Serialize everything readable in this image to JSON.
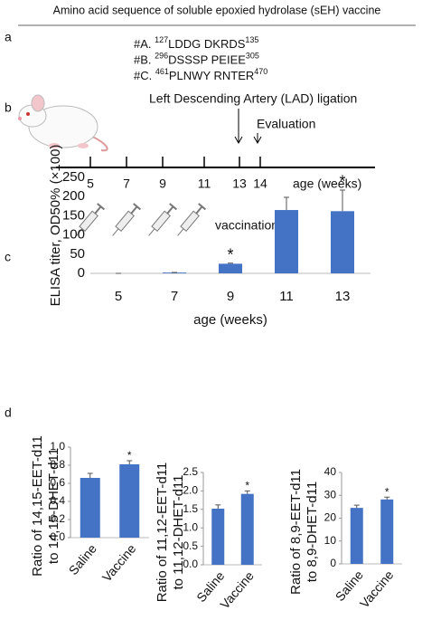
{
  "panel_labels": [
    "a",
    "b",
    "c",
    "d"
  ],
  "panel_a": {
    "title": "Amino acid sequence of soluble epoxied hydrolase (sEH) vaccine",
    "sequences": [
      {
        "id": "#A.",
        "start": 127,
        "residues": "LDDG DKRDS",
        "end": 135
      },
      {
        "id": "#B.",
        "start": 296,
        "residues": "DSSSP PEIEE",
        "end": 305
      },
      {
        "id": "#C.",
        "start": 461,
        "residues": "PLNWY RNTER",
        "end": 470
      }
    ]
  },
  "panel_b": {
    "ligation": "Left Descending Artery (LAD) ligation",
    "evaluation": "Evaluation",
    "ticks": [
      5,
      7,
      9,
      11,
      13,
      14
    ],
    "axis_label": "age (weeks)",
    "vaccination": "vaccination"
  },
  "chart_data": [
    {
      "type": "bar",
      "categories": [
        "5",
        "7",
        "9",
        "11",
        "13"
      ],
      "values": [
        0,
        2,
        25,
        165,
        162
      ],
      "errors": [
        0,
        0.5,
        1.5,
        33,
        55
      ],
      "labels": [
        null,
        null,
        "*",
        null,
        "*"
      ],
      "color": "#4472c4",
      "ylim": [
        0,
        250
      ],
      "yticks": [
        0,
        50,
        100,
        150,
        200,
        250
      ],
      "xlabel": "age (weeks)",
      "ylabel": [
        "ELISA titer, OD50% (×100)"
      ]
    },
    {
      "type": "bar",
      "categories": [
        "Saline",
        "Vaccine"
      ],
      "values": [
        0.66,
        0.81
      ],
      "errors": [
        0.05,
        0.04
      ],
      "labels": [
        null,
        "*"
      ],
      "color": "#4472c4",
      "ylim": [
        0,
        1
      ],
      "yticks": [
        {
          "value": 0,
          "label": "0.0"
        },
        0.2,
        0.4,
        0.6,
        0.8,
        {
          "value": 1,
          "label": "1.0"
        }
      ],
      "ylabel": [
        "Ratio of 14,15-EET-d11",
        "to 14,15-DHET-d11"
      ]
    },
    {
      "type": "bar",
      "categories": [
        "Saline",
        "Vaccine"
      ],
      "values": [
        1.52,
        1.92
      ],
      "errors": [
        0.1,
        0.08
      ],
      "labels": [
        null,
        "*"
      ],
      "color": "#4472c4",
      "ylim": [
        0,
        2.5
      ],
      "yticks": [
        {
          "value": 0,
          "label": "0.0"
        },
        0.5,
        {
          "value": 1,
          "label": "1.0"
        },
        1.5,
        {
          "value": 2,
          "label": "2.0"
        },
        2.5
      ],
      "ylabel": [
        "Ratio of 11,12-EET-d11",
        "to 11,12-DHET-d11"
      ]
    },
    {
      "type": "bar",
      "categories": [
        "Saline",
        "Vaccine"
      ],
      "values": [
        24.5,
        28.2
      ],
      "errors": [
        1.2,
        1
      ],
      "labels": [
        null,
        "*"
      ],
      "color": "#4472c4",
      "ylim": [
        0,
        40
      ],
      "yticks": [
        0,
        10,
        20,
        30,
        40
      ],
      "ylabel": [
        "Ratio of 8,9-EET-d11",
        "to 8,9-DHET-d11"
      ]
    }
  ]
}
